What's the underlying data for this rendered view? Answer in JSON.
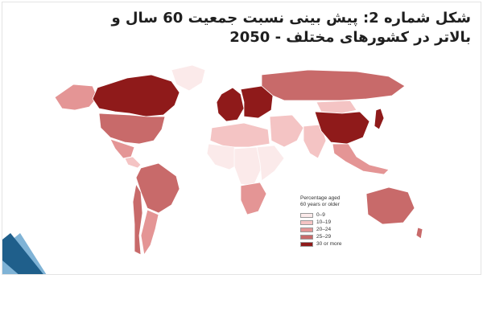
{
  "title": {
    "line1": "شکل شماره 2: پیش بینی نسبت جمعیت 60 سال و",
    "line2": "بالاتر در کشورهای مختلف - 2050"
  },
  "map": {
    "legend": {
      "title_line1": "Percentage aged",
      "title_line2": "60 years or older",
      "items": [
        {
          "label": "0–9",
          "color": "#fbeaea"
        },
        {
          "label": "10–19",
          "color": "#f4c4c4"
        },
        {
          "label": "20–24",
          "color": "#e49595"
        },
        {
          "label": "25–29",
          "color": "#c86a6a"
        },
        {
          "label": "30 or more",
          "color": "#8f1a1a"
        }
      ]
    },
    "region_values": {
      "canada": "30 or more",
      "usa": "25–29",
      "greenland": "0–9",
      "alaska": "20–24",
      "mexico": "20–24",
      "central-america": "10–19",
      "brazil": "25–29",
      "southern-south-america": "20–24",
      "chile": "25–29",
      "west-africa": "0–9",
      "central-africa": "0–9",
      "east-africa": "0–9",
      "north-africa": "10–19",
      "southern-africa": "20–24",
      "western-europe": "30 or more",
      "eastern-europe": "30 or more",
      "russia": "25–29",
      "middle-east": "10–19",
      "india": "10–19",
      "china": "30 or more",
      "mongolia": "10–19",
      "southeast-asia": "20–24",
      "japan": "30 or more",
      "australia": "25–29",
      "new-zealand": "25–29"
    },
    "colors": {
      "ocean": "#ffffff",
      "border": "#ffffff",
      "outline": "#7a2a2a"
    }
  },
  "decor": {
    "blue_dark": "#1f5f8b",
    "blue_light": "#7fb3d6"
  }
}
